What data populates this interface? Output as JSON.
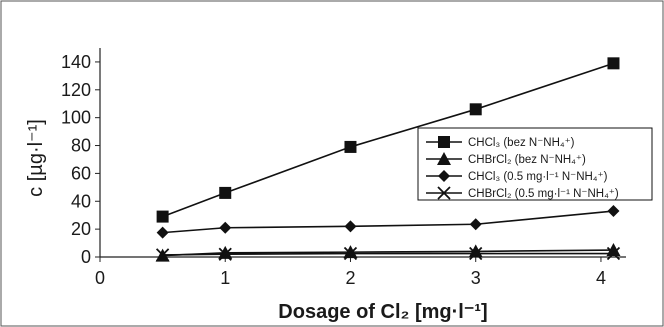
{
  "chart_data": {
    "type": "line",
    "xlabel": "Dosage of Cl₂ [mg·l⁻¹]",
    "ylabel": "c [µg·l⁻¹]",
    "xlim": [
      0,
      4.2
    ],
    "ylim": [
      0,
      150
    ],
    "xticks": [
      "0",
      "1",
      "2",
      "3",
      "4"
    ],
    "yticks": [
      "0",
      "20",
      "40",
      "60",
      "80",
      "100",
      "120",
      "140"
    ],
    "x_tick_values": [
      0,
      1,
      2,
      3,
      4
    ],
    "y_tick_values": [
      0,
      20,
      40,
      60,
      80,
      100,
      120,
      140
    ],
    "grid": false,
    "legend_position": "center-right",
    "series": [
      {
        "name": "CHCl₃ (bez N⁻NH₄⁺)",
        "marker": "square",
        "x": [
          0.5,
          1,
          2,
          3,
          4.1
        ],
        "y": [
          29,
          46,
          79,
          106,
          139
        ]
      },
      {
        "name": "CHBrCl₂ (bez N⁻NH₄⁺)",
        "marker": "triangle",
        "x": [
          0.5,
          1,
          2,
          3,
          4.1
        ],
        "y": [
          1,
          3,
          3.5,
          4,
          5
        ]
      },
      {
        "name": "CHCl₃ (0.5 mg·l⁻¹ N⁻NH₄⁺)",
        "marker": "diamond",
        "x": [
          0.5,
          1,
          2,
          3,
          4.1
        ],
        "y": [
          17.5,
          21,
          22,
          23.5,
          33
        ]
      },
      {
        "name": "CHBrCl₂ (0.5 mg·l⁻¹ N⁻NH₄⁺)",
        "marker": "x",
        "x": [
          0.5,
          1,
          2,
          3,
          4.1
        ],
        "y": [
          1.5,
          2,
          2.5,
          2.5,
          2.5
        ]
      }
    ]
  }
}
